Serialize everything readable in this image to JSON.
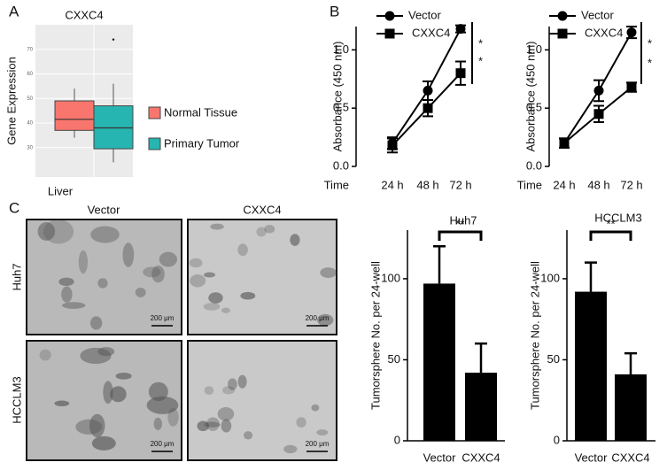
{
  "panel_labels": [
    "A",
    "B",
    "C"
  ],
  "images": {
    "columns": [
      "Vector",
      "CXXC4"
    ],
    "rows": [
      "Huh7",
      "HCCLM3"
    ],
    "scale_bars": [
      "200 μm",
      "200 μm",
      "200 μm",
      "200 μm"
    ]
  },
  "chart_data": [
    {
      "type": "box",
      "title": "CXXC4",
      "y_label": "Gene Expression",
      "categories": [
        "Liver"
      ],
      "ylim": [
        18,
        80
      ],
      "yticks": [
        30,
        40,
        50,
        60,
        70
      ],
      "grid": true,
      "series": [
        {
          "name": "Normal Tissue",
          "color": "#f8766d",
          "whislo": 34,
          "q1": 37,
          "median": 41.5,
          "q3": 49,
          "whishi": 54,
          "outliers": []
        },
        {
          "name": "Primary Tumor",
          "color": "#26b5b0",
          "whislo": 24,
          "q1": 29.5,
          "median": 38,
          "q3": 47,
          "whishi": 56,
          "outliers": [
            74
          ]
        }
      ]
    },
    {
      "type": "line",
      "y_label": "Absorbance (450 nm)",
      "x_label": "Time",
      "categories": [
        "24 h",
        "48 h",
        "72 h"
      ],
      "ylim": [
        0,
        1.2
      ],
      "yticks": [
        {
          "value": 0,
          "label": "0.0"
        },
        {
          "value": 0.5,
          "label": "0.5"
        },
        {
          "value": 1,
          "label": "1.0"
        }
      ],
      "annotations": [
        "*",
        "*"
      ],
      "series": [
        {
          "name": "Vector",
          "color": "#000000",
          "marker": "circle",
          "values": [
            0.2,
            0.65,
            1.18
          ],
          "errors": [
            0.05,
            0.08,
            0.03
          ]
        },
        {
          "name": "CXXC4",
          "color": "#000000",
          "marker": "square",
          "values": [
            0.18,
            0.5,
            0.8
          ],
          "errors": [
            0.06,
            0.07,
            0.1
          ]
        }
      ]
    },
    {
      "type": "line",
      "y_label": "Absorbance (450 nm)",
      "x_label": "Time",
      "categories": [
        "24 h",
        "48 h",
        "72 h"
      ],
      "ylim": [
        0,
        1.2
      ],
      "yticks": [
        {
          "value": 0,
          "label": "0.0"
        },
        {
          "value": 0.5,
          "label": "0.5"
        },
        {
          "value": 1,
          "label": "1.0"
        }
      ],
      "annotations": [
        "*",
        "*"
      ],
      "series": [
        {
          "name": "Vector",
          "color": "#000000",
          "marker": "circle",
          "values": [
            0.2,
            0.65,
            1.15
          ],
          "errors": [
            0.04,
            0.09,
            0.05
          ]
        },
        {
          "name": "CXXC4",
          "color": "#000000",
          "marker": "square",
          "values": [
            0.2,
            0.45,
            0.68
          ],
          "errors": [
            0.04,
            0.07,
            0.04
          ]
        }
      ]
    },
    {
      "type": "bar",
      "title": "Huh7",
      "y_label": "Tumorsphere No. per 24-well",
      "categories": [
        "Vector",
        "CXXC4"
      ],
      "values": [
        97,
        42
      ],
      "errors": [
        23,
        18
      ],
      "color": "#000000",
      "annotation": "**",
      "ylim": [
        0,
        130
      ],
      "yticks": [
        0,
        50,
        100
      ]
    },
    {
      "type": "bar",
      "title": "HCCLM3",
      "y_label": "Tumorsphere No. per 24-well",
      "categories": [
        "Vector",
        "CXXC4"
      ],
      "values": [
        92,
        41
      ],
      "errors": [
        18,
        13
      ],
      "color": "#000000",
      "annotation": "**",
      "ylim": [
        0,
        130
      ],
      "yticks": [
        0,
        50,
        100
      ]
    }
  ]
}
